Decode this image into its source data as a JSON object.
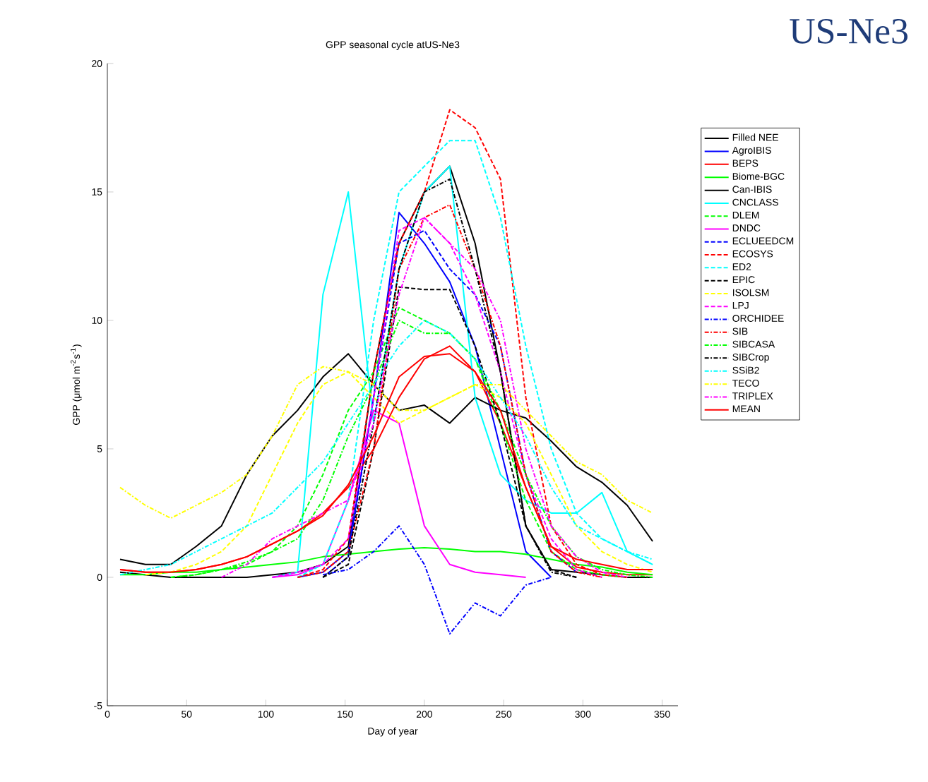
{
  "chart_data": {
    "type": "line",
    "title": "GPP seasonal cycle atUS-Ne3",
    "xlabel": "Day of year",
    "ylabel": "GPP (μmol m$^{-2}$s$^{-1}$)",
    "annotations": [
      "US-Ne3"
    ],
    "x": [
      8,
      24,
      40,
      56,
      72,
      88,
      104,
      120,
      136,
      152,
      168,
      184,
      200,
      216,
      232,
      248,
      264,
      280,
      296,
      312,
      328,
      344
    ],
    "xlim": [
      0,
      360
    ],
    "ylim": [
      -5,
      20
    ],
    "xticks": [
      0,
      50,
      100,
      150,
      200,
      250,
      300,
      350
    ],
    "yticks": [
      -5,
      0,
      5,
      10,
      15,
      20
    ],
    "grid": false,
    "legend": "right",
    "marker": "none",
    "series": [
      {
        "name": "Filled NEE",
        "color": "#000000",
        "line_style": "solid",
        "values": [
          0.2,
          0.1,
          0,
          0,
          0,
          0,
          0.1,
          0.2,
          0.5,
          1.2,
          8,
          13,
          15,
          16,
          13,
          8,
          2,
          0.3,
          0.2,
          0.1,
          0,
          0
        ]
      },
      {
        "name": "AgroIBIS",
        "color": "#0000ff",
        "line_style": "solid",
        "values": [
          null,
          null,
          null,
          null,
          null,
          null,
          null,
          0,
          0.2,
          1,
          7,
          14.2,
          13,
          11.5,
          9,
          5,
          1,
          0,
          null,
          null,
          null,
          null
        ]
      },
      {
        "name": "BEPS",
        "color": "#ff0000",
        "line_style": "solid",
        "values": [
          0.3,
          0.2,
          0.2,
          0.3,
          0.5,
          0.8,
          1.3,
          1.8,
          2.5,
          3.5,
          5,
          7,
          8.5,
          9,
          8,
          6,
          3.5,
          1.2,
          0.4,
          0.2,
          0.1,
          0.1
        ]
      },
      {
        "name": "Biome-BGC",
        "color": "#00ff00",
        "line_style": "solid",
        "values": [
          0.1,
          0.1,
          0.2,
          0.2,
          0.3,
          0.4,
          0.5,
          0.6,
          0.8,
          0.9,
          1,
          1.1,
          1.15,
          1.1,
          1,
          1,
          0.9,
          0.7,
          0.5,
          0.4,
          0.2,
          0.1
        ]
      },
      {
        "name": "Can-IBIS",
        "color": "#000000",
        "line_style": "solid",
        "values": [
          0.7,
          0.5,
          0.5,
          1.2,
          2,
          4,
          5.5,
          6.5,
          7.8,
          8.7,
          7.5,
          6.5,
          6.7,
          6,
          7,
          6.5,
          6.2,
          5.3,
          4.3,
          3.7,
          2.8,
          1.4
        ]
      },
      {
        "name": "CNCLASS",
        "color": "#00ffff",
        "line_style": "solid",
        "values": [
          null,
          null,
          null,
          null,
          null,
          null,
          0,
          0.2,
          11,
          15,
          6,
          12,
          15,
          16,
          7,
          4,
          3,
          2.5,
          2.5,
          3.3,
          1,
          0.5
        ]
      },
      {
        "name": "DLEM",
        "color": "#00ff00",
        "line_style": "dashed",
        "values": [
          null,
          null,
          0,
          0.1,
          0.3,
          0.5,
          1,
          2,
          4,
          6.5,
          8,
          10.5,
          10,
          9.5,
          8.5,
          6,
          3,
          1,
          0.3,
          0.1,
          0,
          null
        ]
      },
      {
        "name": "DNDC",
        "color": "#ff00ff",
        "line_style": "solid",
        "values": [
          null,
          null,
          null,
          null,
          null,
          null,
          0,
          0.1,
          0.5,
          3,
          6.5,
          6,
          2,
          0.5,
          0.2,
          0.1,
          0,
          null,
          null,
          null,
          null,
          null
        ]
      },
      {
        "name": "ECLUEEDCM",
        "color": "#0000ff",
        "line_style": "dashed",
        "values": [
          null,
          null,
          null,
          null,
          null,
          null,
          null,
          null,
          0,
          0.8,
          7,
          13,
          13.5,
          12,
          11,
          9,
          4,
          1,
          0.2,
          null,
          null,
          null
        ]
      },
      {
        "name": "ECOSYS",
        "color": "#ff0000",
        "line_style": "dashed",
        "values": [
          null,
          null,
          null,
          null,
          null,
          null,
          null,
          0,
          0.3,
          1.5,
          8,
          13,
          15,
          18.2,
          17.5,
          15.5,
          7,
          2,
          0.5,
          0.1,
          0,
          null
        ]
      },
      {
        "name": "ED2",
        "color": "#00ffff",
        "line_style": "dashed",
        "values": [
          null,
          null,
          null,
          null,
          null,
          null,
          null,
          0,
          0.5,
          3,
          10,
          15,
          16,
          17,
          17,
          14,
          9,
          5,
          2.5,
          1.5,
          1,
          0.5
        ]
      },
      {
        "name": "EPIC",
        "color": "#000000",
        "line_style": "dashed",
        "values": [
          null,
          null,
          null,
          null,
          null,
          null,
          null,
          null,
          0,
          0.5,
          5,
          11.3,
          11.2,
          11.2,
          9,
          6,
          2,
          0.3,
          0,
          null,
          null,
          null
        ]
      },
      {
        "name": "ISOLSM",
        "color": "#ffff00",
        "line_style": "dashed",
        "values": [
          null,
          0.1,
          0.2,
          0.5,
          1,
          2,
          4,
          6,
          7.5,
          8,
          7,
          6,
          6.5,
          7,
          7.5,
          7,
          6,
          4,
          2,
          1,
          0.5,
          0.2
        ]
      },
      {
        "name": "LPJ",
        "color": "#ff00ff",
        "line_style": "dashed",
        "values": [
          null,
          null,
          null,
          null,
          null,
          null,
          0,
          0.2,
          0.5,
          1.5,
          7,
          13.5,
          14,
          13,
          11,
          8,
          4,
          1.5,
          0.3,
          0,
          null,
          null
        ]
      },
      {
        "name": "ORCHIDEE",
        "color": "#0000ff",
        "line_style": "dashdot",
        "values": [
          null,
          null,
          null,
          null,
          null,
          null,
          null,
          null,
          0.1,
          0.3,
          1,
          2,
          0.5,
          -2.2,
          -1,
          -1.5,
          -0.3,
          0,
          null,
          null,
          null,
          null
        ]
      },
      {
        "name": "SIB",
        "color": "#ff0000",
        "line_style": "dashdot",
        "values": [
          null,
          null,
          null,
          null,
          null,
          null,
          null,
          0,
          0.2,
          1,
          5,
          12,
          14,
          14.5,
          12,
          9,
          4,
          1,
          0.2,
          0,
          null,
          null
        ]
      },
      {
        "name": "SIBCASA",
        "color": "#00ff00",
        "line_style": "dashdot",
        "values": [
          null,
          null,
          0,
          0.1,
          0.3,
          0.6,
          1,
          1.5,
          3,
          5.5,
          7.5,
          10,
          9.5,
          9.5,
          8.5,
          6.5,
          4,
          2,
          0.8,
          0.3,
          0.1,
          0
        ]
      },
      {
        "name": "SIBCrop",
        "color": "#000000",
        "line_style": "dashdot",
        "values": [
          null,
          null,
          null,
          null,
          null,
          null,
          null,
          null,
          0,
          0.8,
          6,
          12,
          15,
          15.5,
          12,
          8,
          2,
          0.2,
          0,
          null,
          null,
          null
        ]
      },
      {
        "name": "SSiB2",
        "color": "#00ffff",
        "line_style": "dashdot",
        "values": [
          0.1,
          0.3,
          0.5,
          1,
          1.5,
          2,
          2.5,
          3.5,
          4.5,
          6,
          7.5,
          9,
          10,
          9.5,
          8.5,
          7,
          5.5,
          3.5,
          2,
          1.5,
          1,
          0.7
        ]
      },
      {
        "name": "TECO",
        "color": "#ffff00",
        "line_style": "dashdot",
        "values": [
          3.5,
          2.8,
          2.3,
          2.8,
          3.3,
          4,
          5.5,
          7.5,
          8.2,
          8,
          7.5,
          6.5,
          6.5,
          7,
          7.5,
          7.5,
          6.5,
          5.5,
          4.5,
          4,
          3,
          2.5
        ]
      },
      {
        "name": "TRIPLEX",
        "color": "#ff00ff",
        "line_style": "dashdot",
        "values": [
          null,
          null,
          null,
          null,
          0,
          0.5,
          1.5,
          2,
          2.5,
          3,
          6,
          11,
          14,
          13,
          12,
          10,
          5,
          2,
          0.8,
          0.2,
          0,
          null
        ]
      },
      {
        "name": "MEAN",
        "color": "#ff0000",
        "line_style": "solid",
        "values": [
          0.3,
          0.2,
          0.2,
          0.3,
          0.5,
          0.8,
          1.3,
          1.8,
          2.4,
          3.6,
          5.5,
          7.8,
          8.6,
          8.7,
          8,
          6.5,
          3.5,
          1.2,
          0.7,
          0.5,
          0.3,
          0.3
        ]
      }
    ]
  }
}
